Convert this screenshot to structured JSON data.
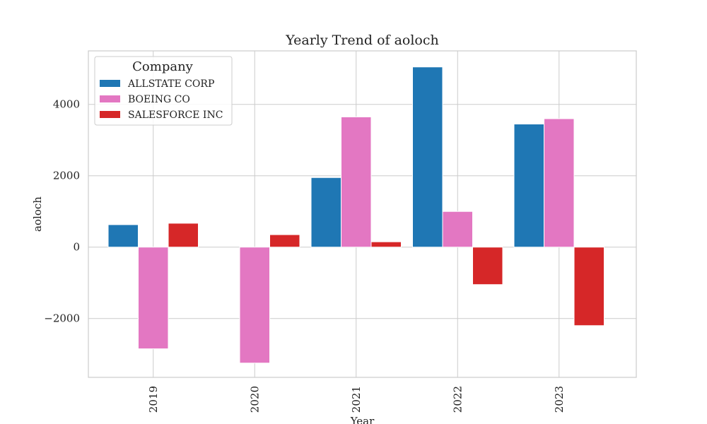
{
  "chart_data": {
    "type": "bar",
    "title": "Yearly Trend of aoloch",
    "xlabel": "Year",
    "ylabel": "aoloch",
    "categories": [
      "2019",
      "2020",
      "2021",
      "2022",
      "2023"
    ],
    "ylim": [
      -3650,
      5500
    ],
    "yticks": [
      -2000,
      0,
      2000,
      4000
    ],
    "yticklabels": [
      "−2000",
      "0",
      "2000",
      "4000"
    ],
    "grid": true,
    "legend": {
      "title": "Company",
      "placement": "top-left"
    },
    "series": [
      {
        "name": "ALLSTATE CORP",
        "color": "#1f77b4",
        "values": [
          630,
          0,
          1950,
          5050,
          3450
        ]
      },
      {
        "name": "BOEING CO",
        "color": "#e377c2",
        "values": [
          -2850,
          -3250,
          3650,
          1000,
          3600
        ]
      },
      {
        "name": "SALESFORCE INC",
        "color": "#d62728",
        "values": [
          670,
          350,
          150,
          -1050,
          -2200
        ]
      }
    ]
  }
}
